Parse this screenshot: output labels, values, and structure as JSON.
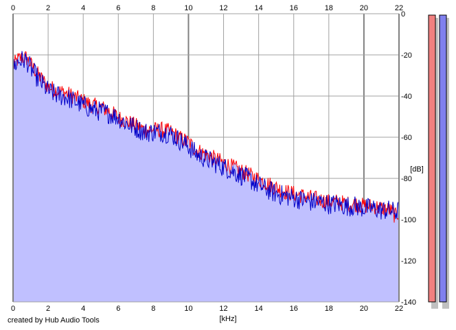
{
  "chart_data": {
    "type": "area",
    "xlabel": "[kHz]",
    "ylabel": "[dB]",
    "xlim": [
      0,
      22
    ],
    "ylim": [
      -140,
      0
    ],
    "x_ticks": [
      0,
      2,
      4,
      6,
      8,
      10,
      12,
      14,
      16,
      18,
      20,
      22
    ],
    "y_ticks": [
      0,
      -20,
      -40,
      -60,
      -80,
      -100,
      -120,
      -140
    ],
    "major_x_gridlines": [
      0,
      10,
      20
    ],
    "grid": true,
    "series": [
      {
        "color": "#ff0000",
        "x": [
          0,
          0.25,
          0.5,
          0.75,
          1,
          1.5,
          2,
          2.5,
          3,
          3.5,
          4,
          4.5,
          5,
          5.5,
          6,
          6.5,
          7,
          7.5,
          8,
          8.5,
          9,
          9.5,
          10,
          10.5,
          11,
          11.5,
          12,
          12.5,
          13,
          13.5,
          14,
          14.5,
          15,
          15.5,
          16,
          16.5,
          17,
          17.5,
          18,
          18.5,
          19,
          19.5,
          20,
          20.5,
          21,
          21.5,
          21.8,
          22
        ],
        "values": [
          -25,
          -22,
          -21,
          -21,
          -24,
          -30,
          -35,
          -37,
          -38,
          -40,
          -42,
          -44,
          -45,
          -47,
          -50,
          -52,
          -54,
          -56,
          -56,
          -56,
          -57,
          -60,
          -62,
          -66,
          -68,
          -70,
          -72,
          -74,
          -76,
          -78,
          -80,
          -82,
          -84,
          -86,
          -87,
          -88,
          -89,
          -90,
          -91,
          -91,
          -92,
          -92,
          -93,
          -93,
          -94,
          -95,
          -98,
          -96
        ]
      },
      {
        "color": "#0000c8",
        "x": [
          0,
          0.25,
          0.5,
          0.75,
          1,
          1.5,
          2,
          2.5,
          3,
          3.5,
          4,
          4.5,
          5,
          5.5,
          6,
          6.5,
          7,
          7.5,
          8,
          8.5,
          9,
          9.5,
          10,
          10.5,
          11,
          11.5,
          12,
          12.5,
          13,
          13.5,
          14,
          14.5,
          15,
          15.5,
          16,
          16.5,
          17,
          17.5,
          18,
          18.5,
          19,
          19.5,
          20,
          20.5,
          21,
          21.5,
          21.8,
          22
        ],
        "values": [
          -26,
          -23,
          -22,
          -22,
          -26,
          -32,
          -37,
          -39,
          -40,
          -42,
          -44,
          -46,
          -47,
          -48,
          -50,
          -53,
          -55,
          -57,
          -57,
          -57,
          -58,
          -61,
          -64,
          -68,
          -70,
          -72,
          -74,
          -76,
          -78,
          -80,
          -83,
          -85,
          -87,
          -88,
          -89,
          -90,
          -91,
          -91,
          -92,
          -92,
          -93,
          -93,
          -94,
          -94,
          -95,
          -95,
          -96,
          -95
        ]
      }
    ]
  },
  "credit": "created by Hub Audio Tools",
  "colors": {
    "fill": "#c0c0ff",
    "grid": "#a0a0a0",
    "grid_major": "#808080",
    "left_meter": "#f08080",
    "right_meter": "#8080ee",
    "meter_shadow": "#c0c0c0"
  }
}
